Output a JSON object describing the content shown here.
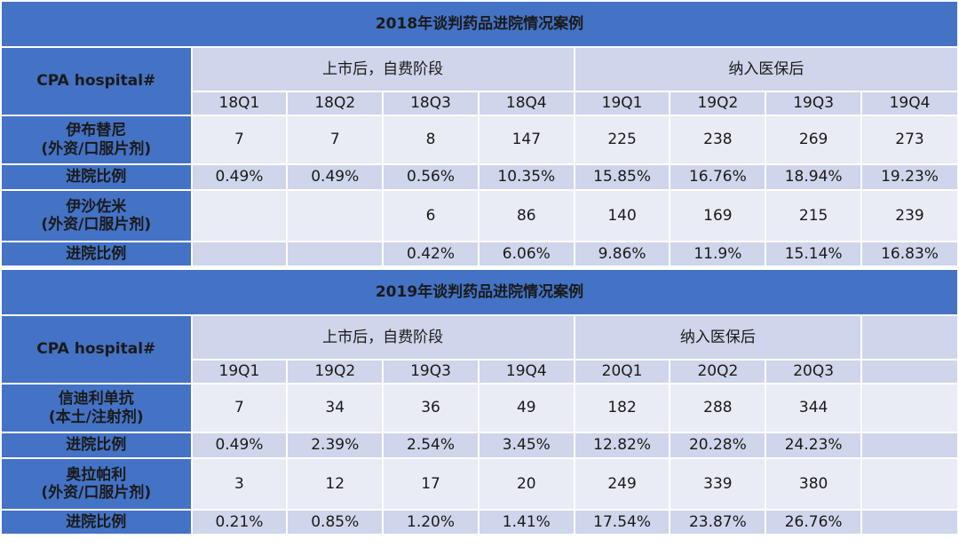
{
  "tables": [
    {
      "title": "2018年谈判药品进院情况案例",
      "row_header": "CPA hospital#",
      "groups": [
        "上市后，自费阶段",
        "纳入医保后"
      ],
      "quarters": [
        "18Q1",
        "18Q2",
        "18Q3",
        "18Q4",
        "19Q1",
        "19Q2",
        "19Q3",
        "19Q4"
      ],
      "drugs": [
        {
          "name": "伊布替尼",
          "type": "(外资/口服片剂)",
          "counts": [
            "7",
            "7",
            "8",
            "147",
            "225",
            "238",
            "269",
            "273"
          ],
          "ratio_label": "进院比例",
          "ratios": [
            "0.49%",
            "0.49%",
            "0.56%",
            "10.35%",
            "15.85%",
            "16.76%",
            "18.94%",
            "19.23%"
          ]
        },
        {
          "name": "伊沙佐米",
          "type": "(外资/口服片剂)",
          "counts": [
            "",
            "",
            "6",
            "86",
            "140",
            "169",
            "215",
            "239"
          ],
          "ratio_label": "进院比例",
          "ratios": [
            "",
            "",
            "0.42%",
            "6.06%",
            "9.86%",
            "11.9%",
            "15.14%",
            "16.83%"
          ]
        }
      ]
    },
    {
      "title": "2019年谈判药品进院情况案例",
      "row_header": "CPA hospital#",
      "groups": [
        "上市后，自费阶段",
        "纳入医保后"
      ],
      "quarters": [
        "19Q1",
        "19Q2",
        "19Q3",
        "19Q4",
        "20Q1",
        "20Q2",
        "20Q3",
        ""
      ],
      "drugs": [
        {
          "name": "信迪利单抗",
          "type": "(本土/注射剂)",
          "counts": [
            "7",
            "34",
            "36",
            "49",
            "182",
            "288",
            "344",
            ""
          ],
          "ratio_label": "进院比例",
          "ratios": [
            "0.49%",
            "2.39%",
            "2.54%",
            "3.45%",
            "12.82%",
            "20.28%",
            "24.23%",
            ""
          ]
        },
        {
          "name": "奥拉帕利",
          "type": "(外资/口服片剂)",
          "counts": [
            "3",
            "12",
            "17",
            "20",
            "249",
            "339",
            "380",
            ""
          ],
          "ratio_label": "进院比例",
          "ratios": [
            "0.21%",
            "0.85%",
            "1.20%",
            "1.41%",
            "17.54%",
            "23.87%",
            "26.76%",
            ""
          ]
        }
      ]
    }
  ]
}
